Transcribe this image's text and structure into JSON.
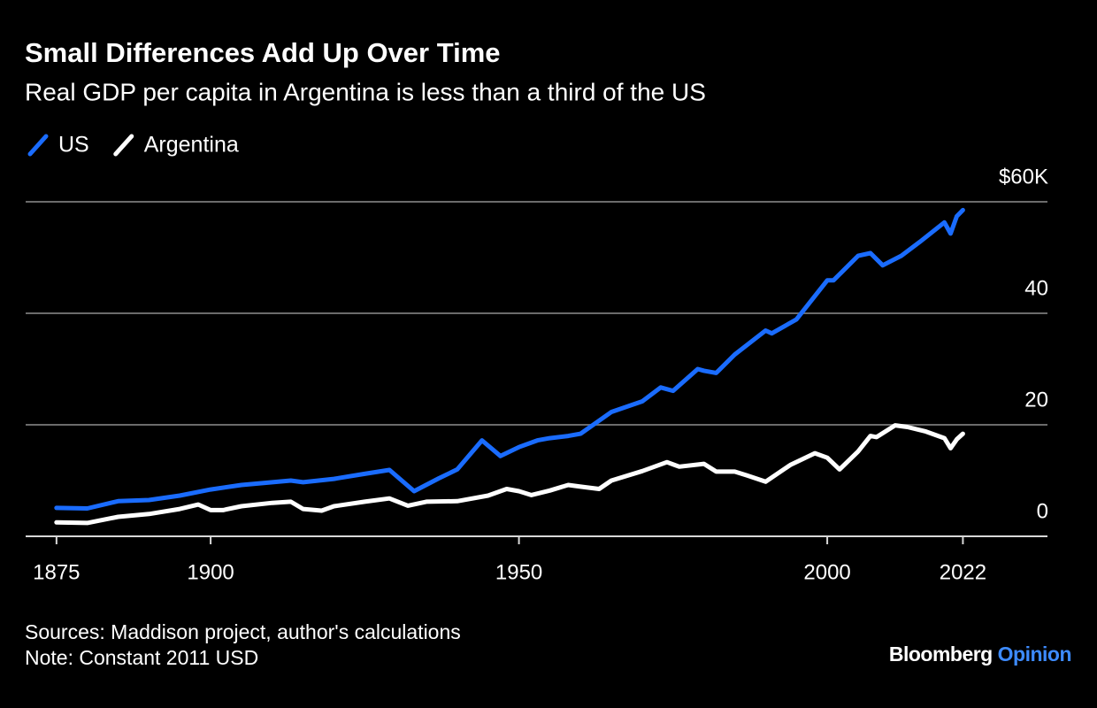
{
  "chart_data": {
    "type": "line",
    "title": "Small Differences Add Up Over Time",
    "subtitle": "Real GDP per capita in Argentina is less than a third of the US",
    "series": [
      {
        "name": "US",
        "color": "#1a6cff",
        "x": [
          1875,
          1880,
          1885,
          1890,
          1895,
          1900,
          1905,
          1910,
          1913,
          1915,
          1920,
          1925,
          1929,
          1933,
          1937,
          1940,
          1944,
          1947,
          1950,
          1953,
          1955,
          1958,
          1960,
          1965,
          1970,
          1973,
          1975,
          1979,
          1980,
          1982,
          1985,
          1990,
          1991,
          1995,
          2000,
          2001,
          2005,
          2007,
          2009,
          2012,
          2015,
          2019,
          2020,
          2021,
          2022
        ],
        "values": [
          5.1,
          5,
          6.3,
          6.5,
          7.3,
          8.4,
          9.2,
          9.7,
          10,
          9.7,
          10.3,
          11.2,
          11.9,
          8.1,
          10.4,
          12,
          17.2,
          14.4,
          16,
          17.2,
          17.6,
          18,
          18.4,
          22.3,
          24.2,
          26.7,
          26.1,
          30,
          29.7,
          29.3,
          32.6,
          36.9,
          36.4,
          38.9,
          45.9,
          45.9,
          50.3,
          50.8,
          48.6,
          50.3,
          52.8,
          56.3,
          54.3,
          57.4,
          58.5
        ]
      },
      {
        "name": "Argentina",
        "color": "#ffffff",
        "x": [
          1875,
          1880,
          1885,
          1890,
          1895,
          1898,
          1900,
          1902,
          1905,
          1910,
          1913,
          1915,
          1918,
          1920,
          1925,
          1929,
          1932,
          1935,
          1940,
          1945,
          1948,
          1950,
          1952,
          1955,
          1958,
          1960,
          1963,
          1965,
          1970,
          1974,
          1976,
          1980,
          1982,
          1985,
          1987,
          1990,
          1994,
          1998,
          2000,
          2002,
          2005,
          2007,
          2008,
          2011,
          2013,
          2016,
          2019,
          2020,
          2021,
          2022
        ],
        "values": [
          2.5,
          2.4,
          3.5,
          4,
          4.9,
          5.7,
          4.7,
          4.7,
          5.4,
          6,
          6.2,
          4.9,
          4.6,
          5.4,
          6.2,
          6.8,
          5.5,
          6.2,
          6.3,
          7.3,
          8.5,
          8.1,
          7.4,
          8.2,
          9.2,
          8.9,
          8.5,
          10,
          11.7,
          13.3,
          12.5,
          13,
          11.6,
          11.6,
          10.9,
          9.8,
          12.8,
          14.9,
          14.1,
          12,
          15.2,
          18,
          17.8,
          19.9,
          19.6,
          18.8,
          17.6,
          15.8,
          17.4,
          18.4
        ]
      }
    ],
    "xlim": [
      1870,
      2036
    ],
    "xticks": [
      1875,
      1900,
      1950,
      2000,
      2022
    ],
    "ylim": [
      0,
      60
    ],
    "yticks": [
      0,
      20,
      40,
      {
        "value": 60,
        "label": "$60K"
      }
    ],
    "grid": true,
    "sources": "Sources: Maddison project, author's calculations",
    "note": "Note: Constant 2011 USD",
    "brand": {
      "name": "Bloomberg",
      "product": "Opinion"
    }
  }
}
